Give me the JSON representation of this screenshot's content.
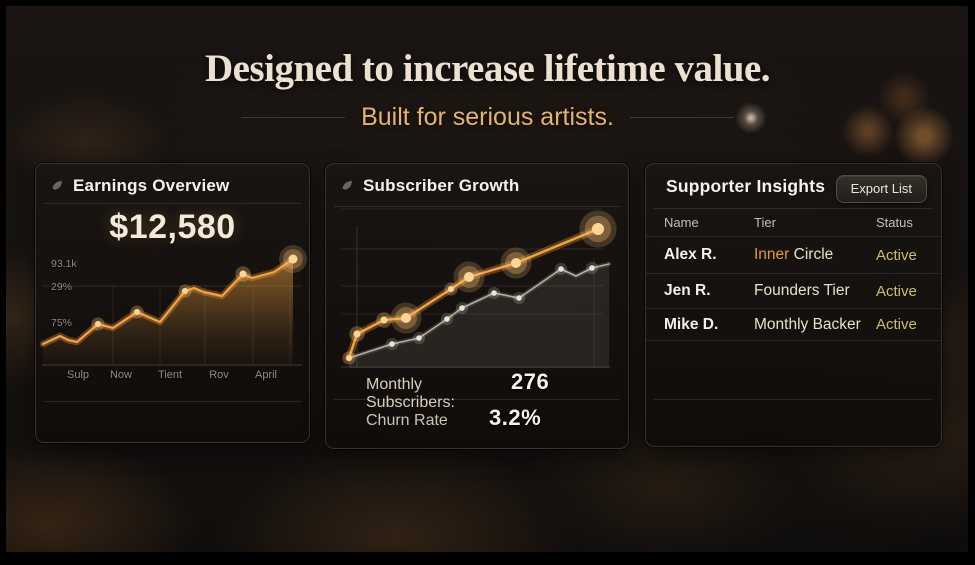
{
  "header": {
    "title": "Designed to increase lifetime value.",
    "subtitle": "Built for serious artists."
  },
  "earnings": {
    "title": "Earnings Overview",
    "total": "$12,580"
  },
  "subscribers": {
    "title": "Subscriber Growth",
    "monthly_label": "Monthly Subscribers:",
    "monthly_value": "276",
    "churn_label": "Churn Rate",
    "churn_value": "3.2%"
  },
  "supporters": {
    "title": "Supporter Insights",
    "export_label": "Export List",
    "columns": [
      "Name",
      "Tier",
      "Status"
    ],
    "rows": [
      {
        "name": "Alex R.",
        "tier": "Inner Circle",
        "tier_highlight": "Inner",
        "status": "Active"
      },
      {
        "name": "Jen R.",
        "tier": "Founders Tier",
        "tier_highlight": "",
        "status": "Active"
      },
      {
        "name": "Mike D.",
        "tier": "Monthly Backer",
        "tier_highlight": "",
        "status": "Active"
      }
    ]
  },
  "colors": {
    "accent_orange": "#f6a23f",
    "dot_bright": "#ffd596",
    "tier_highlight": "#e0993c",
    "status_gold": "#cbbd6b",
    "heading_cream": "#ece0d1",
    "subtitle_amber": "#e7b269"
  },
  "chart_data": [
    {
      "id": "earnings",
      "type": "area",
      "title": "Earnings Overview",
      "x_tick_labels": [
        "Sulp",
        "Now",
        "Tient",
        "Rov",
        "April"
      ],
      "y_tick_labels": [
        "93.1k",
        "29%",
        "75%"
      ],
      "legend": "none",
      "grid": "faint vertical + one horizontal",
      "series": [
        {
          "name": "earnings-trend",
          "color": "#f6a23f",
          "width": 2.2,
          "glow": "rgba(247,160,60,0.32)",
          "dot_color": "#ffd596",
          "dot_glow": "rgba(255,190,110,0.30)",
          "area_fill": "gradient",
          "baseline": 110,
          "points": [
            [
              1,
              88
            ],
            [
              18,
              80
            ],
            [
              26,
              84
            ],
            [
              35,
              86
            ],
            [
              56,
              68
            ],
            [
              71,
              72
            ],
            [
              95,
              56
            ],
            [
              118,
              66
            ],
            [
              143,
              35
            ],
            [
              152,
              32
            ],
            [
              162,
              36
            ],
            [
              180,
              40
            ],
            [
              201,
              18
            ],
            [
              210,
              22
            ],
            [
              232,
              16
            ],
            [
              251,
              3
            ]
          ],
          "dots": [
            [
              56,
              68,
              3
            ],
            [
              95,
              56,
              3
            ],
            [
              143,
              35,
              3
            ],
            [
              201,
              18,
              3.5
            ],
            [
              251,
              3,
              4.5
            ]
          ]
        }
      ]
    },
    {
      "id": "subscribers",
      "type": "line",
      "title": "Subscriber Growth",
      "x_tick_labels": [],
      "y_tick_labels": [],
      "legend": "none",
      "grid": "faint horizontal + left axis",
      "series": [
        {
          "name": "baseline-series",
          "color": "#b6ada0",
          "width": 1.6,
          "glow": "rgba(235,225,210,0.14)",
          "dot_color": "#ece4d5",
          "dot_glow": "rgba(240,232,215,0.18)",
          "area_fill": "rgba(190,178,165,0.13)",
          "baseline": 160,
          "points": [
            [
              8,
              150
            ],
            [
              51,
              136
            ],
            [
              78,
              130
            ],
            [
              106,
              111
            ],
            [
              121,
              100
            ],
            [
              153,
              85
            ],
            [
              178,
              90
            ],
            [
              220,
              61
            ],
            [
              235,
              68
            ],
            [
              251,
              60
            ],
            [
              268,
              56
            ]
          ],
          "dots": [
            [
              51,
              136,
              2.8
            ],
            [
              78,
              130,
              2.8
            ],
            [
              106,
              111,
              2.8
            ],
            [
              121,
              100,
              2.8
            ],
            [
              153,
              85,
              2.8
            ],
            [
              178,
              90,
              2.8
            ],
            [
              220,
              61,
              2.8
            ],
            [
              251,
              60,
              2.8
            ]
          ]
        },
        {
          "name": "highlight-series",
          "color": "#f6a23f",
          "width": 2.4,
          "glow": "rgba(247,160,60,0.32)",
          "dot_color": "#ffd596",
          "dot_glow": "rgba(255,190,110,0.30)",
          "points": [
            [
              8,
              150
            ],
            [
              16,
              126
            ],
            [
              43,
              112
            ],
            [
              65,
              110
            ],
            [
              110,
              81
            ],
            [
              128,
              69
            ],
            [
              175,
              55
            ],
            [
              257,
              21
            ]
          ],
          "dots": [
            [
              8,
              150,
              3
            ],
            [
              16,
              126,
              3.5
            ],
            [
              43,
              112,
              3.5
            ],
            [
              65,
              110,
              5
            ],
            [
              110,
              81,
              3
            ],
            [
              128,
              69,
              5
            ],
            [
              175,
              55,
              5
            ],
            [
              257,
              21,
              6
            ]
          ]
        }
      ]
    }
  ]
}
